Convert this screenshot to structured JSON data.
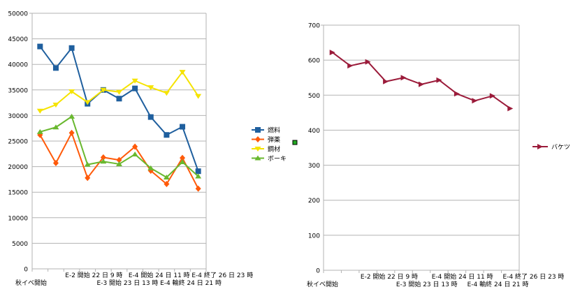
{
  "chart_data": [
    {
      "type": "line",
      "title": "",
      "xlabel": "",
      "ylabel": "",
      "grid": true,
      "ylim": [
        0,
        50000
      ],
      "yticks": [
        0,
        5000,
        10000,
        15000,
        20000,
        25000,
        30000,
        35000,
        40000,
        45000,
        50000
      ],
      "x_tick_labels": [
        "秋イベ開始",
        "E-2 開始 22 日 9 時",
        "E-3 開始 23 日 13 時",
        "E-4 開始 24 日 11 時",
        "E-4 輸終 24 日 21 時",
        "E-4 終了 26 日 23 時"
      ],
      "point_count": 11,
      "legend_position": "right",
      "series": [
        {
          "name": "燃料",
          "color": "#1f5f9e",
          "marker": "square",
          "values": [
            43500,
            39300,
            43200,
            32300,
            35000,
            33300,
            35300,
            29700,
            26200,
            27800,
            19100
          ]
        },
        {
          "name": "弾薬",
          "color": "#ff5a0a",
          "marker": "diamond",
          "values": [
            26200,
            20700,
            26600,
            17800,
            21800,
            21300,
            23900,
            19200,
            16600,
            21700,
            15700
          ]
        },
        {
          "name": "鋼材",
          "color": "#f5e300",
          "marker": "triangle-down",
          "values": [
            30900,
            32100,
            34700,
            32600,
            35000,
            34600,
            36800,
            35500,
            34400,
            38500,
            33800
          ]
        },
        {
          "name": "ボーキ",
          "color": "#69b82f",
          "marker": "triangle-up",
          "values": [
            26800,
            27700,
            29800,
            20400,
            21000,
            20500,
            22400,
            19700,
            17900,
            20900,
            18100
          ]
        }
      ]
    },
    {
      "type": "line",
      "title": "",
      "xlabel": "",
      "ylabel": "",
      "grid": true,
      "ylim": [
        0,
        700
      ],
      "yticks": [
        0,
        100,
        200,
        300,
        400,
        500,
        600,
        700
      ],
      "x_tick_labels": [
        "秋イベ開始",
        "E-2 開始 22 日 9 時",
        "E-3 開始 23 日 13 時",
        "E-4 開始 24 日 11 時",
        "E-4 輸終 24 日 21 時",
        "E-4 終了 26 日 23 時"
      ],
      "point_count": 11,
      "legend_position": "right",
      "series": [
        {
          "name": "バケツ",
          "color": "#9b1b3a",
          "marker": "triangle-right",
          "values": [
            622,
            584,
            595,
            539,
            550,
            531,
            543,
            504,
            484,
            498,
            462
          ]
        }
      ]
    }
  ]
}
